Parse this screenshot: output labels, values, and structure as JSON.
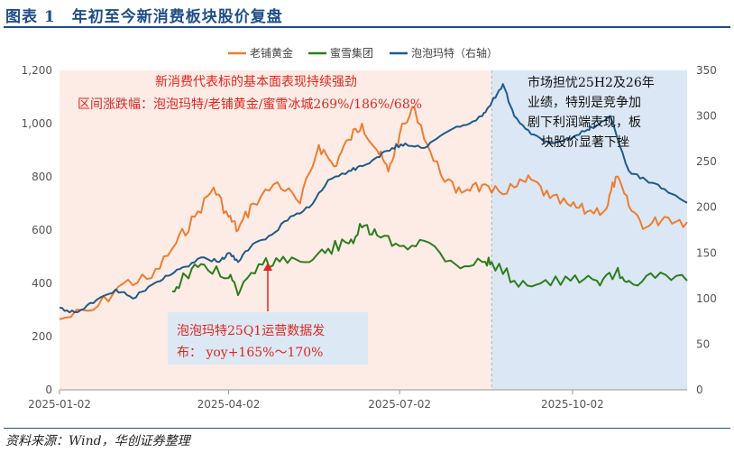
{
  "header": {
    "title": "图表 1　年初至今新消费板块股价复盘"
  },
  "footer": {
    "source": "资料来源：Wind，华创证券整理"
  },
  "colors": {
    "title": "#1f4e8c",
    "laopu": "#ed7d31",
    "mixue": "#2e7d1e",
    "popmart": "#1f5c8a",
    "shade_left": "#fdece6",
    "shade_right": "#dbe7f4",
    "annotation_red": "#e0261f",
    "callout_bg": "#dce8f4",
    "arrow": "#e0261f"
  },
  "annotations": {
    "top_left_line1": "新消费代表标的基本面表现持续强劲",
    "top_left_line2": "区间涨跌幅：泡泡玛特/老铺黄金/蜜雪冰城269%/186%/68%",
    "callout_line1": "泡泡玛特25Q1运营数据发",
    "callout_line2": "布：  yoy+165%～170%",
    "right_line1": "市场担忧25H2及26年",
    "right_line2": "业绩，特别是竞争加",
    "right_line3": "剧下利润端表现，板",
    "right_line4": "块股价显著下挫"
  },
  "chart_data": {
    "type": "line",
    "title": "",
    "xlabel": "",
    "ylabel": "",
    "x_ticks": [
      "2025-01-02",
      "2025-04-02",
      "2025-07-02",
      "2025-10-02"
    ],
    "y_left_ticks": [
      "0",
      "200",
      "400",
      "600",
      "800",
      "1,000",
      "1,200"
    ],
    "y_right_ticks": [
      "0",
      "50",
      "100",
      "150",
      "200",
      "250",
      "300",
      "350"
    ],
    "ylim_left": [
      0,
      1200
    ],
    "ylim_right": [
      0,
      350
    ],
    "xlim": [
      "2025-01-02",
      "2025-12-02"
    ],
    "legend_position": "top-center",
    "shaded_periods": [
      {
        "from": "2025-01-02",
        "to": "2025-08-20"
      },
      {
        "from": "2025-08-20",
        "to": "2025-12-02"
      }
    ],
    "series": [
      {
        "name": "老铺黄金",
        "axis": "left",
        "x": [
          "2025-01-02",
          "2025-01-20",
          "2025-02-05",
          "2025-02-20",
          "2025-03-05",
          "2025-03-15",
          "2025-03-25",
          "2025-04-02",
          "2025-04-07",
          "2025-04-15",
          "2025-04-28",
          "2025-05-10",
          "2025-05-20",
          "2025-05-28",
          "2025-06-05",
          "2025-06-12",
          "2025-06-20",
          "2025-06-26",
          "2025-07-02",
          "2025-07-10",
          "2025-07-20",
          "2025-08-01",
          "2025-08-10",
          "2025-08-20",
          "2025-09-01",
          "2025-09-10",
          "2025-09-20",
          "2025-10-01",
          "2025-10-10",
          "2025-10-20",
          "2025-10-25",
          "2025-11-01",
          "2025-11-10",
          "2025-11-20",
          "2025-12-02"
        ],
        "values": [
          265,
          300,
          400,
          420,
          550,
          650,
          760,
          650,
          600,
          700,
          780,
          700,
          920,
          840,
          940,
          1000,
          900,
          820,
          960,
          1060,
          860,
          740,
          770,
          740,
          760,
          790,
          720,
          690,
          670,
          680,
          800,
          690,
          610,
          650,
          630
        ]
      },
      {
        "name": "蜜雪集团",
        "axis": "left",
        "x": [
          "2025-03-03",
          "2025-03-10",
          "2025-03-20",
          "2025-04-02",
          "2025-04-08",
          "2025-04-20",
          "2025-05-01",
          "2025-05-15",
          "2025-05-25",
          "2025-06-05",
          "2025-06-12",
          "2025-06-20",
          "2025-07-02",
          "2025-07-15",
          "2025-08-01",
          "2025-08-15",
          "2025-08-20",
          "2025-09-01",
          "2025-09-15",
          "2025-10-01",
          "2025-10-15",
          "2025-10-25",
          "2025-11-01",
          "2025-11-15",
          "2025-12-02"
        ],
        "values": [
          370,
          430,
          470,
          420,
          370,
          470,
          500,
          480,
          530,
          550,
          610,
          580,
          540,
          560,
          470,
          480,
          480,
          410,
          400,
          410,
          410,
          440,
          410,
          420,
          410
        ]
      },
      {
        "name": "泡泡玛特（右轴）",
        "axis": "right",
        "x": [
          "2025-01-02",
          "2025-01-10",
          "2025-01-20",
          "2025-02-01",
          "2025-02-10",
          "2025-02-20",
          "2025-03-01",
          "2025-03-10",
          "2025-03-20",
          "2025-03-28",
          "2025-04-02",
          "2025-04-07",
          "2025-04-15",
          "2025-04-25",
          "2025-05-05",
          "2025-05-15",
          "2025-05-25",
          "2025-06-05",
          "2025-06-12",
          "2025-06-20",
          "2025-06-28",
          "2025-07-05",
          "2025-07-15",
          "2025-07-25",
          "2025-08-05",
          "2025-08-15",
          "2025-08-20",
          "2025-08-26",
          "2025-09-01",
          "2025-09-10",
          "2025-09-20",
          "2025-10-01",
          "2025-10-10",
          "2025-10-15",
          "2025-10-22",
          "2025-11-01",
          "2025-11-10",
          "2025-11-20",
          "2025-12-02"
        ],
        "values": [
          90,
          85,
          95,
          110,
          100,
          115,
          125,
          135,
          145,
          140,
          150,
          140,
          160,
          170,
          190,
          200,
          230,
          240,
          245,
          255,
          265,
          270,
          265,
          280,
          290,
          300,
          315,
          335,
          300,
          280,
          270,
          275,
          285,
          290,
          300,
          240,
          230,
          220,
          205
        ]
      }
    ]
  }
}
